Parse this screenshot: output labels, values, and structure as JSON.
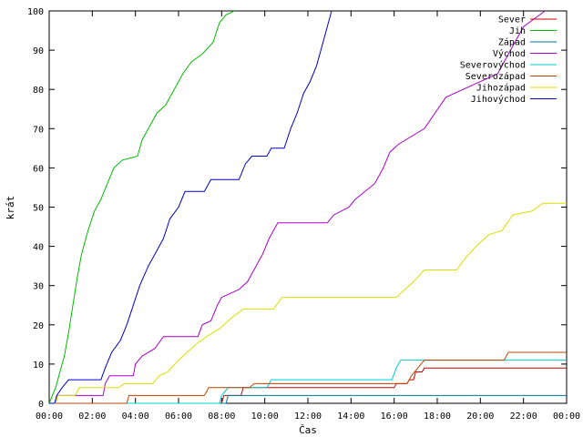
{
  "chart_data": {
    "type": "line",
    "title": "",
    "xlabel": "Čas",
    "ylabel": "krát",
    "xlim": [
      0,
      24
    ],
    "ylim": [
      0,
      100
    ],
    "grid": false,
    "legend_position": "top-right",
    "x_tick_values": [
      0,
      2,
      4,
      6,
      8,
      10,
      12,
      14,
      16,
      18,
      20,
      22,
      24
    ],
    "x_tick_labels": [
      "00:00",
      "02:00",
      "04:00",
      "06:00",
      "08:00",
      "10:00",
      "12:00",
      "14:00",
      "16:00",
      "18:00",
      "20:00",
      "22:00",
      "00:00"
    ],
    "y_tick_values": [
      0,
      10,
      20,
      30,
      40,
      50,
      60,
      70,
      80,
      90,
      100
    ],
    "y_tick_labels": [
      "0",
      "10",
      "20",
      "30",
      "40",
      "50",
      "60",
      "70",
      "80",
      "90",
      "100"
    ],
    "series": [
      {
        "name": "Sever",
        "color": "#cc0000",
        "points": [
          [
            0,
            0
          ],
          [
            8.0,
            0
          ],
          [
            8.1,
            2
          ],
          [
            8.9,
            2
          ],
          [
            9.0,
            4
          ],
          [
            16.0,
            4
          ],
          [
            16.1,
            5
          ],
          [
            16.6,
            5
          ],
          [
            16.7,
            6
          ],
          [
            16.9,
            6
          ],
          [
            17.0,
            8
          ],
          [
            17.3,
            8
          ],
          [
            17.4,
            9
          ],
          [
            24,
            9
          ]
        ]
      },
      {
        "name": "Jih",
        "color": "#00bb00",
        "points": [
          [
            0,
            0
          ],
          [
            0.15,
            2
          ],
          [
            0.3,
            4
          ],
          [
            0.5,
            8
          ],
          [
            0.7,
            12
          ],
          [
            0.9,
            18
          ],
          [
            1.1,
            25
          ],
          [
            1.3,
            32
          ],
          [
            1.5,
            38
          ],
          [
            1.8,
            44
          ],
          [
            2.1,
            49
          ],
          [
            2.4,
            52
          ],
          [
            2.7,
            56
          ],
          [
            3.0,
            60
          ],
          [
            3.4,
            62
          ],
          [
            4.1,
            63
          ],
          [
            4.3,
            67
          ],
          [
            4.6,
            70
          ],
          [
            5.0,
            74
          ],
          [
            5.4,
            76
          ],
          [
            5.8,
            80
          ],
          [
            6.2,
            84
          ],
          [
            6.6,
            87
          ],
          [
            7.1,
            89
          ],
          [
            7.6,
            92
          ],
          [
            7.9,
            97
          ],
          [
            8.2,
            99
          ],
          [
            8.6,
            100
          ]
        ]
      },
      {
        "name": "Západ",
        "color": "#0077aa",
        "points": [
          [
            0,
            0
          ],
          [
            8.2,
            0
          ],
          [
            8.3,
            2
          ],
          [
            24,
            2
          ]
        ]
      },
      {
        "name": "Východ",
        "color": "#aa00cc",
        "points": [
          [
            0,
            0
          ],
          [
            0.3,
            0
          ],
          [
            0.4,
            2
          ],
          [
            2.5,
            2
          ],
          [
            2.6,
            5
          ],
          [
            2.8,
            7
          ],
          [
            3.9,
            7
          ],
          [
            4.0,
            10
          ],
          [
            4.3,
            12
          ],
          [
            4.9,
            14
          ],
          [
            5.3,
            17
          ],
          [
            6.9,
            17
          ],
          [
            7.1,
            20
          ],
          [
            7.5,
            21
          ],
          [
            7.8,
            25
          ],
          [
            8.0,
            27
          ],
          [
            8.8,
            29
          ],
          [
            9.2,
            31
          ],
          [
            9.6,
            35
          ],
          [
            9.9,
            38
          ],
          [
            10.2,
            42
          ],
          [
            10.6,
            46
          ],
          [
            12.9,
            46
          ],
          [
            13.2,
            48
          ],
          [
            13.9,
            50
          ],
          [
            14.2,
            52
          ],
          [
            15.1,
            56
          ],
          [
            15.5,
            60
          ],
          [
            15.8,
            64
          ],
          [
            16.2,
            66
          ],
          [
            17.4,
            70
          ],
          [
            17.9,
            74
          ],
          [
            18.4,
            78
          ],
          [
            19.2,
            80
          ],
          [
            20.8,
            84
          ],
          [
            21.2,
            88
          ],
          [
            21.6,
            92
          ],
          [
            22.0,
            96
          ],
          [
            22.5,
            98
          ],
          [
            23.0,
            100
          ]
        ]
      },
      {
        "name": "Severovýchod",
        "color": "#00cccc",
        "points": [
          [
            0,
            0
          ],
          [
            7.9,
            0
          ],
          [
            8.0,
            2
          ],
          [
            8.3,
            4
          ],
          [
            10.1,
            4
          ],
          [
            10.3,
            6
          ],
          [
            15.9,
            6
          ],
          [
            16.1,
            9
          ],
          [
            16.3,
            11
          ],
          [
            24,
            11
          ]
        ]
      },
      {
        "name": "Severozápad",
        "color": "#bb4400",
        "points": [
          [
            0,
            0
          ],
          [
            3.6,
            0
          ],
          [
            3.7,
            2
          ],
          [
            7.2,
            2
          ],
          [
            7.4,
            4
          ],
          [
            9.3,
            4
          ],
          [
            9.5,
            5
          ],
          [
            16.6,
            5
          ],
          [
            16.8,
            7
          ],
          [
            17.1,
            9
          ],
          [
            17.4,
            11
          ],
          [
            21.1,
            11
          ],
          [
            21.3,
            13
          ],
          [
            24,
            13
          ]
        ]
      },
      {
        "name": "Jihozápad",
        "color": "#dddd00",
        "points": [
          [
            0,
            0
          ],
          [
            0.3,
            0
          ],
          [
            0.4,
            2
          ],
          [
            1.2,
            2
          ],
          [
            1.4,
            4
          ],
          [
            3.2,
            4
          ],
          [
            3.5,
            5
          ],
          [
            4.8,
            5
          ],
          [
            5.1,
            7
          ],
          [
            5.5,
            8
          ],
          [
            6.0,
            11
          ],
          [
            6.4,
            13
          ],
          [
            6.8,
            15
          ],
          [
            7.3,
            17
          ],
          [
            7.9,
            19
          ],
          [
            8.5,
            22
          ],
          [
            9.0,
            24
          ],
          [
            10.4,
            24
          ],
          [
            10.8,
            27
          ],
          [
            16.1,
            27
          ],
          [
            16.5,
            29
          ],
          [
            16.9,
            31
          ],
          [
            17.4,
            34
          ],
          [
            18.9,
            34
          ],
          [
            19.3,
            37
          ],
          [
            19.8,
            40
          ],
          [
            20.4,
            43
          ],
          [
            21.0,
            44
          ],
          [
            21.5,
            48
          ],
          [
            22.4,
            49
          ],
          [
            22.9,
            51
          ],
          [
            24,
            51
          ]
        ]
      },
      {
        "name": "Jihovýchod",
        "color": "#0000cc",
        "points": [
          [
            0,
            0
          ],
          [
            0.25,
            0
          ],
          [
            0.35,
            2
          ],
          [
            0.6,
            4
          ],
          [
            0.9,
            6
          ],
          [
            2.4,
            6
          ],
          [
            2.6,
            9
          ],
          [
            2.9,
            13
          ],
          [
            3.3,
            16
          ],
          [
            3.6,
            20
          ],
          [
            3.9,
            25
          ],
          [
            4.2,
            30
          ],
          [
            4.6,
            35
          ],
          [
            4.9,
            38
          ],
          [
            5.3,
            42
          ],
          [
            5.6,
            47
          ],
          [
            6.0,
            50
          ],
          [
            6.3,
            54
          ],
          [
            7.2,
            54
          ],
          [
            7.5,
            57
          ],
          [
            8.8,
            57
          ],
          [
            9.1,
            61
          ],
          [
            9.4,
            63
          ],
          [
            10.1,
            63
          ],
          [
            10.3,
            65
          ],
          [
            10.9,
            65
          ],
          [
            11.2,
            70
          ],
          [
            11.5,
            74
          ],
          [
            11.8,
            79
          ],
          [
            12.1,
            82
          ],
          [
            12.4,
            86
          ],
          [
            12.7,
            92
          ],
          [
            12.9,
            96
          ],
          [
            13.1,
            100
          ]
        ]
      }
    ]
  }
}
